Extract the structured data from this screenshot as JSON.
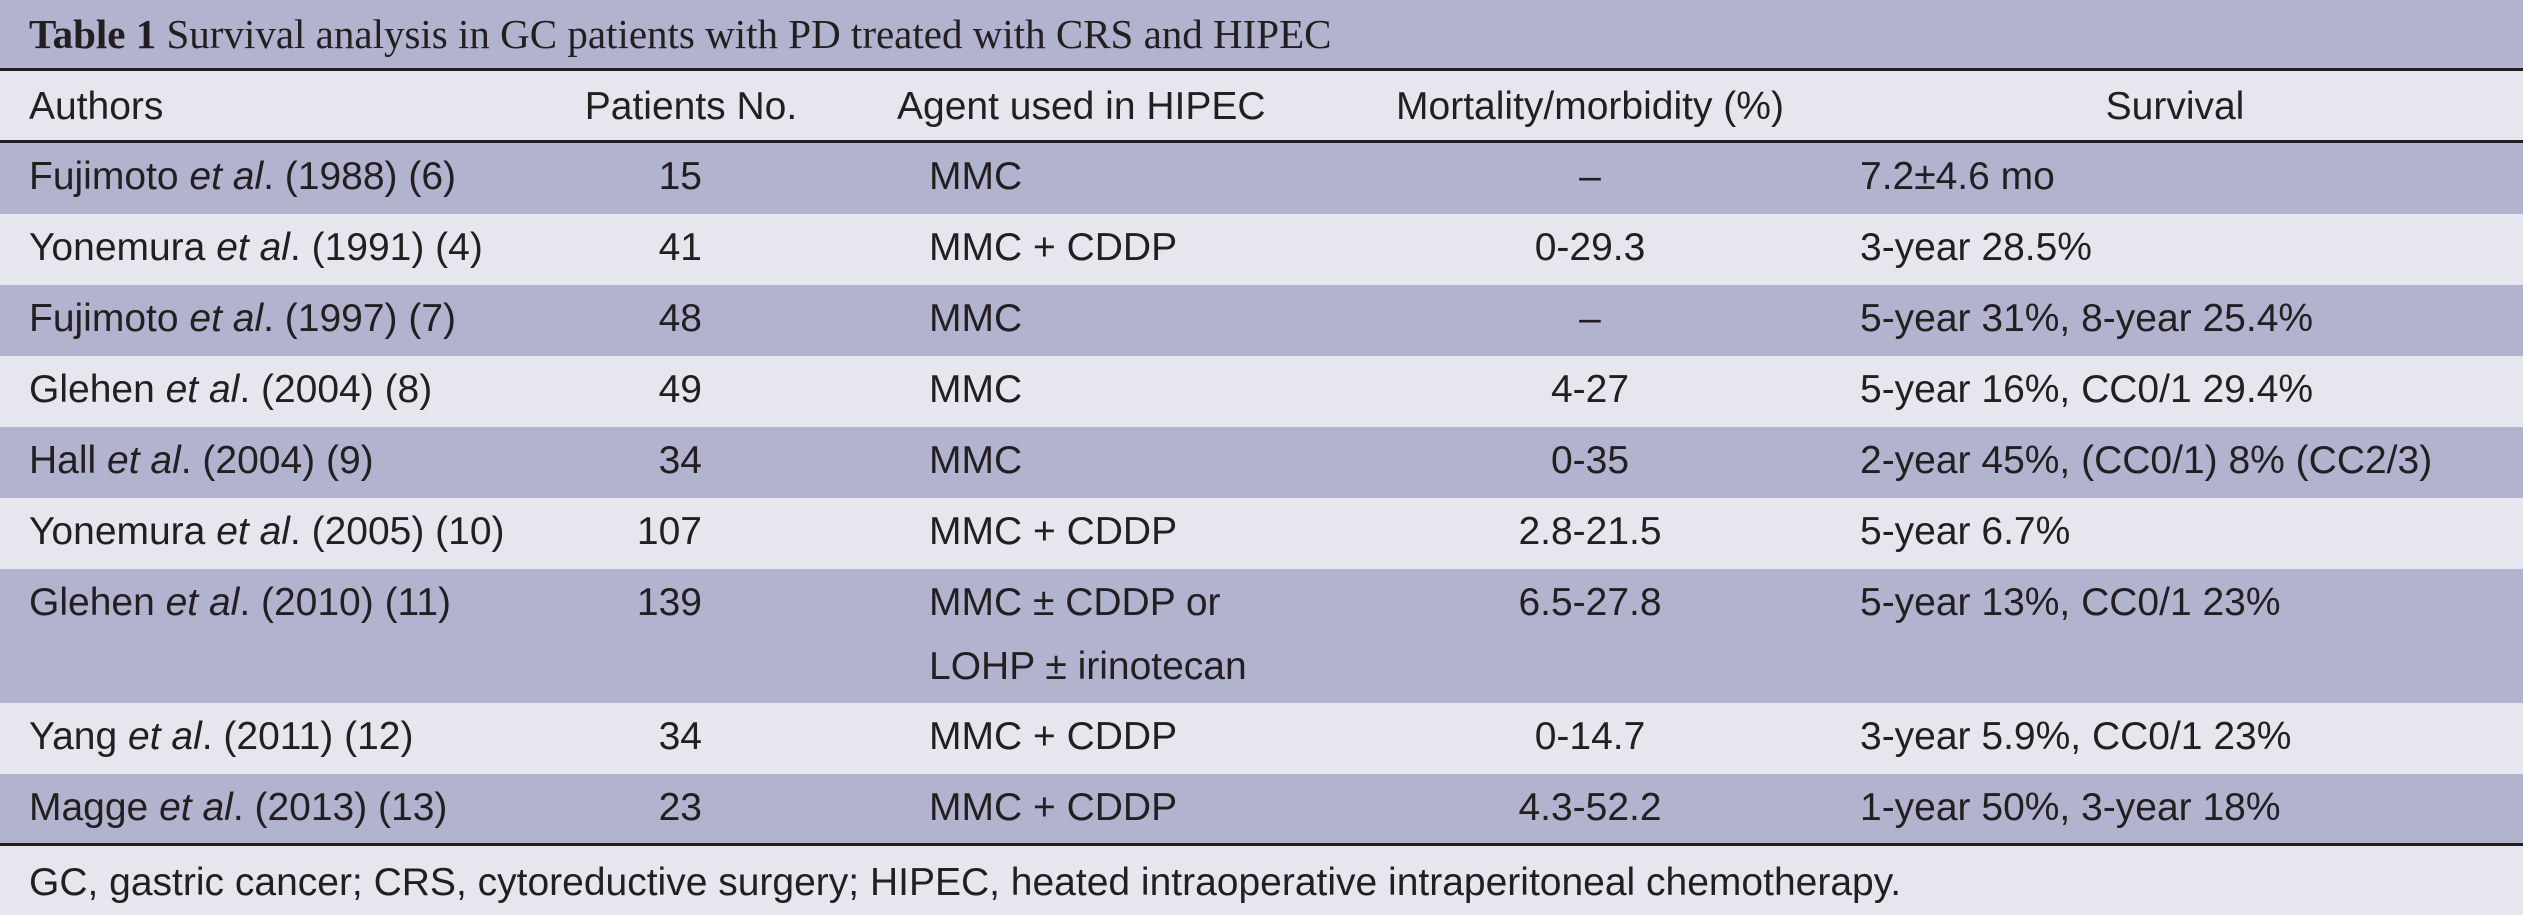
{
  "title": {
    "label": "Table 1",
    "text": " Survival analysis in GC patients with PD treated with CRS and HIPEC"
  },
  "headers": {
    "authors": "Authors",
    "patients": "Patients No.",
    "agent": "Agent used in HIPEC",
    "mortality": "Mortality/morbidity (%)",
    "survival": "Survival"
  },
  "rows": [
    {
      "author": "Fujimoto",
      "etal": "et al",
      "ref": ". (1988) (6)",
      "patients": "15",
      "agent": "MMC",
      "agent2": "",
      "mortality": "–",
      "survival": "7.2±4.6 mo"
    },
    {
      "author": "Yonemura",
      "etal": "et al",
      "ref": ". (1991) (4)",
      "patients": "41",
      "agent": "MMC + CDDP",
      "agent2": "",
      "mortality": "0-29.3",
      "survival": "3-year 28.5%"
    },
    {
      "author": "Fujimoto",
      "etal": "et al",
      "ref": ". (1997) (7)",
      "patients": "48",
      "agent": "MMC",
      "agent2": "",
      "mortality": "–",
      "survival": "5-year 31%, 8-year 25.4%"
    },
    {
      "author": "Glehen",
      "etal": "et al",
      "ref": ". (2004) (8)",
      "patients": "49",
      "agent": "MMC",
      "agent2": "",
      "mortality": "4-27",
      "survival": "5-year 16%, CC0/1 29.4%"
    },
    {
      "author": "Hall",
      "etal": "et al",
      "ref": ". (2004) (9)",
      "patients": "34",
      "agent": "MMC",
      "agent2": "",
      "mortality": "0-35",
      "survival": "2-year 45%, (CC0/1) 8% (CC2/3)"
    },
    {
      "author": "Yonemura",
      "etal": "et al",
      "ref": ". (2005) (10)",
      "patients": "107",
      "agent": "MMC + CDDP",
      "agent2": "",
      "mortality": "2.8-21.5",
      "survival": "5-year 6.7%"
    },
    {
      "author": "Glehen",
      "etal": "et al",
      "ref": ". (2010) (11)",
      "patients": "139",
      "agent": "MMC ± CDDP or",
      "agent2": "LOHP ± irinotecan",
      "mortality": "6.5-27.8",
      "survival": "5-year 13%, CC0/1 23%"
    },
    {
      "author": "Yang",
      "etal": "et al",
      "ref": ". (2011) (12)",
      "patients": "34",
      "agent": "MMC + CDDP",
      "agent2": "",
      "mortality": "0-14.7",
      "survival": "3-year 5.9%, CC0/1 23%"
    },
    {
      "author": "Magge",
      "etal": "et al",
      "ref": ". (2013) (13)",
      "patients": "23",
      "agent": "MMC + CDDP",
      "agent2": "",
      "mortality": "4.3-52.2",
      "survival": "1-year 50%, 3-year 18%"
    }
  ],
  "footnote": "GC, gastric cancer; CRS, cytoreductive surgery; HIPEC, heated intraoperative intraperitoneal chemotherapy."
}
